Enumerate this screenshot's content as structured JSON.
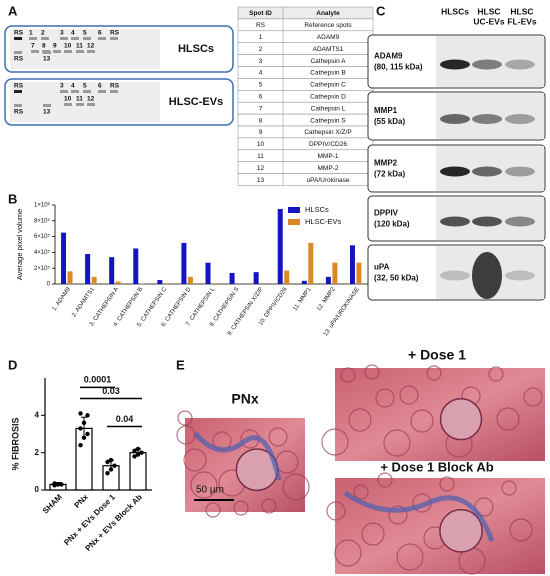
{
  "panel_labels": [
    "A",
    "B",
    "C",
    "D",
    "E"
  ],
  "panel_a": {
    "blots": [
      {
        "label": "HLSCs",
        "rows": [
          [
            "RS",
            "1",
            "2",
            "3",
            "4",
            "5",
            "6",
            "RS"
          ],
          [
            "7",
            "8",
            "9",
            "10",
            "11",
            "12"
          ],
          [
            "RS",
            "13"
          ]
        ]
      },
      {
        "label": "HLSC-EVs",
        "rows": [
          [
            "RS",
            "3",
            "4",
            "5",
            "6",
            "RS"
          ],
          [
            "10",
            "11",
            "12"
          ],
          [
            "RS",
            "13"
          ]
        ]
      }
    ],
    "table": {
      "header": [
        "Spot ID",
        "Analyte"
      ],
      "rows": [
        [
          "RS",
          "Reference spots"
        ],
        [
          "1",
          "ADAM9"
        ],
        [
          "2",
          "ADAMTS1"
        ],
        [
          "3",
          "Cathepsin A"
        ],
        [
          "4",
          "Cathepsin B"
        ],
        [
          "5",
          "Cathepsin C"
        ],
        [
          "6",
          "Cathepsin D"
        ],
        [
          "7",
          "Cathepsin L"
        ],
        [
          "8",
          "Cathepsin S"
        ],
        [
          "9",
          "Cathepsin X/Z/P"
        ],
        [
          "10",
          "DPPIV/CD26"
        ],
        [
          "11",
          "MMP-1"
        ],
        [
          "12",
          "MMP-2"
        ],
        [
          "13",
          "uPA/Urokinase"
        ]
      ]
    }
  },
  "panel_c": {
    "columns": [
      [
        "HLSCs"
      ],
      [
        "HLSC",
        "UC-EVs"
      ],
      [
        "HLSC",
        "FL-EVs"
      ]
    ],
    "blots": [
      [
        "ADAM9",
        "(80, 115 kDa)"
      ],
      [
        "MMP1",
        "(55 kDa)"
      ],
      [
        "MMP2",
        "(72 kDa)"
      ],
      [
        "DPPIV",
        "(120 kDa)"
      ],
      [
        "uPA",
        "(32, 50 kDa)"
      ]
    ]
  },
  "panel_e": {
    "labels": [
      "PNx",
      "+ Dose 1",
      "+ Dose 1 Block Ab"
    ],
    "scale_bar": "50 µm"
  },
  "chart_data": [
    {
      "type": "bar",
      "y_label": "Average pixel volume",
      "categories": [
        "1. ADAM9",
        "2. ADAMTS1",
        "3. CATHEPSIN A",
        "4. CATHEPSIN B",
        "5. CATHEPSIN C",
        "6. CATHEPSIN D",
        "7. CATHEPSIN L",
        "8. CATHEPSIN S",
        "9. CATHEPSIN X/Z/P",
        "10. DPPIV/CD26",
        "11. MMP1",
        "12. MMP2",
        "13. uPA/UROKINASE"
      ],
      "series": [
        {
          "name": "HLSCs",
          "color": "#1414c0",
          "values": [
            650000,
            380000,
            340000,
            450000,
            50000,
            520000,
            270000,
            140000,
            150000,
            950000,
            40000,
            90000,
            490000
          ]
        },
        {
          "name": "HLSC-EVs",
          "color": "#d98a26",
          "values": [
            160000,
            90000,
            30000,
            5000,
            10000,
            90000,
            10000,
            0,
            0,
            170000,
            520000,
            270000,
            270000
          ]
        }
      ],
      "ylim": [
        0,
        1000000
      ],
      "yticks": [
        0,
        {
          "value": 200000,
          "label": "2×10⁵"
        },
        {
          "value": 400000,
          "label": "4×10⁵"
        },
        {
          "value": 600000,
          "label": "6×10⁵"
        },
        {
          "value": 800000,
          "label": "8×10⁵"
        },
        {
          "value": 1000000,
          "label": "1×10⁶"
        }
      ],
      "legend": "top-right"
    },
    {
      "type": "dotbar",
      "y_label": "% FIBROSIS",
      "categories": [
        "SHAM",
        "PNx",
        "PNx + EVs Dose 1",
        "PNx + EVs Block Ab"
      ],
      "values": [
        0.3,
        3.3,
        1.3,
        2.0
      ],
      "errors": [
        0.1,
        0.6,
        0.3,
        0.2
      ],
      "points": [
        [
          0.25,
          0.3,
          0.3,
          0.35,
          0.3
        ],
        [
          2.4,
          2.8,
          3.0,
          3.3,
          3.6,
          4.0,
          4.1
        ],
        [
          0.9,
          1.1,
          1.3,
          1.5,
          1.6
        ],
        [
          1.8,
          1.9,
          2.0,
          2.1,
          2.2
        ]
      ],
      "color": "#ffffff",
      "ylim": [
        0,
        6
      ],
      "yticks": [
        0,
        2,
        4
      ],
      "annotations": [
        "0.0001",
        "0.03",
        "0.04"
      ]
    }
  ]
}
